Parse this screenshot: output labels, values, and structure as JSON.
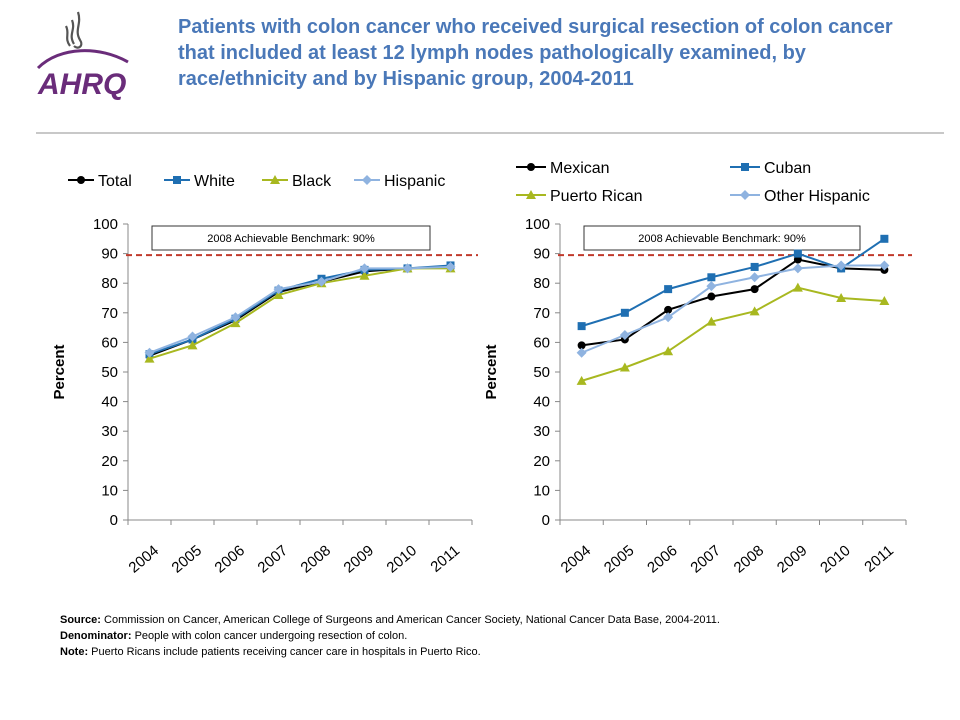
{
  "header": {
    "logo_text": "AHRQ",
    "title": "Patients with colon cancer who received surgical resection of colon cancer that included at least 12 lymph nodes pathologically examined, by race/ethnicity and by Hispanic group, 2004-2011"
  },
  "colors": {
    "title": "#4a78b8",
    "benchmark_line": "#c0392b",
    "logo_purple": "#6a2c7a",
    "total": "#000000",
    "white": "#1f6fb2",
    "black": "#a8b820",
    "hispanic": "#8fb3e0"
  },
  "chart_data": [
    {
      "type": "line",
      "categories": [
        "2004",
        "2005",
        "2006",
        "2007",
        "2008",
        "2009",
        "2010",
        "2011"
      ],
      "ylabel": "Percent",
      "ylim": [
        0,
        100
      ],
      "yticks": [
        "0",
        "10",
        "20",
        "30",
        "40",
        "50",
        "60",
        "70",
        "80",
        "90",
        "100"
      ],
      "grid": false,
      "legend": "top",
      "benchmark": {
        "label": "2008 Achievable Benchmark: 90%",
        "value": 89.5
      },
      "series": [
        {
          "name": "Total",
          "color": "#000000",
          "marker": "circle",
          "values": [
            55.5,
            61,
            67.5,
            77,
            80.5,
            84,
            85,
            85.5
          ]
        },
        {
          "name": "White",
          "color": "#1f6fb2",
          "marker": "square",
          "values": [
            56,
            61,
            68,
            77.5,
            81.5,
            84.5,
            85,
            86
          ]
        },
        {
          "name": "Black",
          "color": "#a8b820",
          "marker": "triangle",
          "values": [
            54.5,
            59,
            66.5,
            76,
            80,
            82.5,
            85,
            85
          ]
        },
        {
          "name": "Hispanic",
          "color": "#8fb3e0",
          "marker": "diamond",
          "values": [
            56.5,
            62,
            68.5,
            78,
            80.5,
            85,
            85,
            85.5
          ]
        }
      ]
    },
    {
      "type": "line",
      "categories": [
        "2004",
        "2005",
        "2006",
        "2007",
        "2008",
        "2009",
        "2010",
        "2011"
      ],
      "ylabel": "Percent",
      "ylim": [
        0,
        100
      ],
      "yticks": [
        "0",
        "10",
        "20",
        "30",
        "40",
        "50",
        "60",
        "70",
        "80",
        "90",
        "100"
      ],
      "grid": false,
      "legend": "top",
      "benchmark": {
        "label": "2008 Achievable Benchmark: 90%",
        "value": 89.5
      },
      "series": [
        {
          "name": "Mexican",
          "color": "#000000",
          "marker": "circle",
          "values": [
            59,
            61,
            71,
            75.5,
            78,
            88,
            85,
            84.5
          ]
        },
        {
          "name": "Cuban",
          "color": "#1f6fb2",
          "marker": "square",
          "values": [
            65.5,
            70,
            78,
            82,
            85.5,
            90,
            85,
            95
          ]
        },
        {
          "name": "Puerto Rican",
          "color": "#a8b820",
          "marker": "triangle",
          "values": [
            47,
            51.5,
            57,
            67,
            70.5,
            78.5,
            75,
            74
          ]
        },
        {
          "name": "Other Hispanic",
          "color": "#8fb3e0",
          "marker": "diamond",
          "values": [
            56.5,
            62.5,
            68.5,
            79,
            82,
            85,
            86,
            86
          ]
        }
      ]
    }
  ],
  "notes": {
    "source_label": "Source:",
    "source_text": "Commission on Cancer, American College of Surgeons and American Cancer Society, National Cancer Data Base, 2004-2011.",
    "denominator_label": "Denominator:",
    "denominator_text": "People with colon cancer undergoing resection of colon.",
    "note_label": "Note:",
    "note_text": "Puerto Ricans include patients receiving cancer care in hospitals in Puerto Rico."
  }
}
